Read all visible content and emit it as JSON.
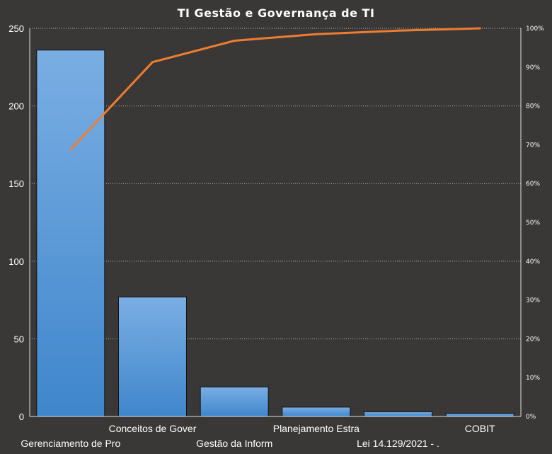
{
  "chart_data": {
    "type": "bar",
    "title": "TI Gestão  e Governança  de TI",
    "categories": [
      "Gerenciamento de Pro",
      "Conceitos de Gover",
      "Gestão da Inform",
      "Planejamento Estra",
      "Lei 14.129/2021 - .",
      "COBIT"
    ],
    "values": [
      236,
      77,
      19,
      6,
      3,
      2
    ],
    "cumulative_percent": [
      68.8,
      91.3,
      96.8,
      98.5,
      99.4,
      100
    ],
    "ylim": [
      0,
      250
    ],
    "yticks": [
      "0",
      "50",
      "100",
      "150",
      "200",
      "250"
    ],
    "y2lim": [
      0,
      100
    ],
    "y2ticks": [
      "0%",
      "10%",
      "20%",
      "30%",
      "40%",
      "50%",
      "60%",
      "70%",
      "80%",
      "90%",
      "100%"
    ],
    "grid": true,
    "colors": {
      "background": "#3a3837",
      "bar_top": "#7aaee3",
      "bar_bottom": "#3f86cc",
      "line": "#ed7d31",
      "text": "#ffffff"
    }
  }
}
